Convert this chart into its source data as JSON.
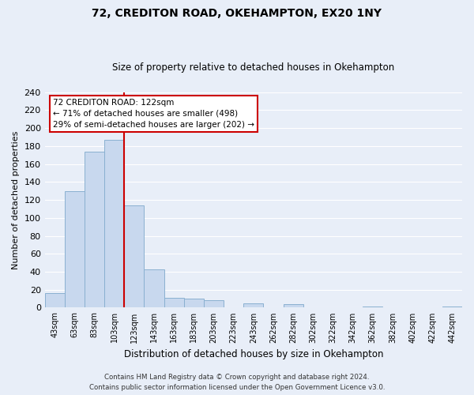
{
  "title": "72, CREDITON ROAD, OKEHAMPTON, EX20 1NY",
  "subtitle": "Size of property relative to detached houses in Okehampton",
  "xlabel": "Distribution of detached houses by size in Okehampton",
  "ylabel": "Number of detached properties",
  "bar_labels": [
    "43sqm",
    "63sqm",
    "83sqm",
    "103sqm",
    "123sqm",
    "143sqm",
    "163sqm",
    "183sqm",
    "203sqm",
    "223sqm",
    "243sqm",
    "262sqm",
    "282sqm",
    "302sqm",
    "322sqm",
    "342sqm",
    "362sqm",
    "382sqm",
    "402sqm",
    "422sqm",
    "442sqm"
  ],
  "bar_values": [
    16,
    130,
    174,
    187,
    114,
    43,
    11,
    10,
    8,
    0,
    5,
    0,
    4,
    0,
    0,
    0,
    1,
    0,
    0,
    0,
    1
  ],
  "bar_color": "#c8d8ee",
  "bar_edge_color": "#8ab0d0",
  "vline_color": "#cc0000",
  "ylim": [
    0,
    240
  ],
  "yticks": [
    0,
    20,
    40,
    60,
    80,
    100,
    120,
    140,
    160,
    180,
    200,
    220,
    240
  ],
  "annotation_title": "72 CREDITON ROAD: 122sqm",
  "annotation_line1": "← 71% of detached houses are smaller (498)",
  "annotation_line2": "29% of semi-detached houses are larger (202) →",
  "annotation_box_color": "#ffffff",
  "annotation_box_edge": "#cc0000",
  "footer_line1": "Contains HM Land Registry data © Crown copyright and database right 2024.",
  "footer_line2": "Contains public sector information licensed under the Open Government Licence v3.0.",
  "background_color": "#e8eef8",
  "grid_color": "#ffffff"
}
